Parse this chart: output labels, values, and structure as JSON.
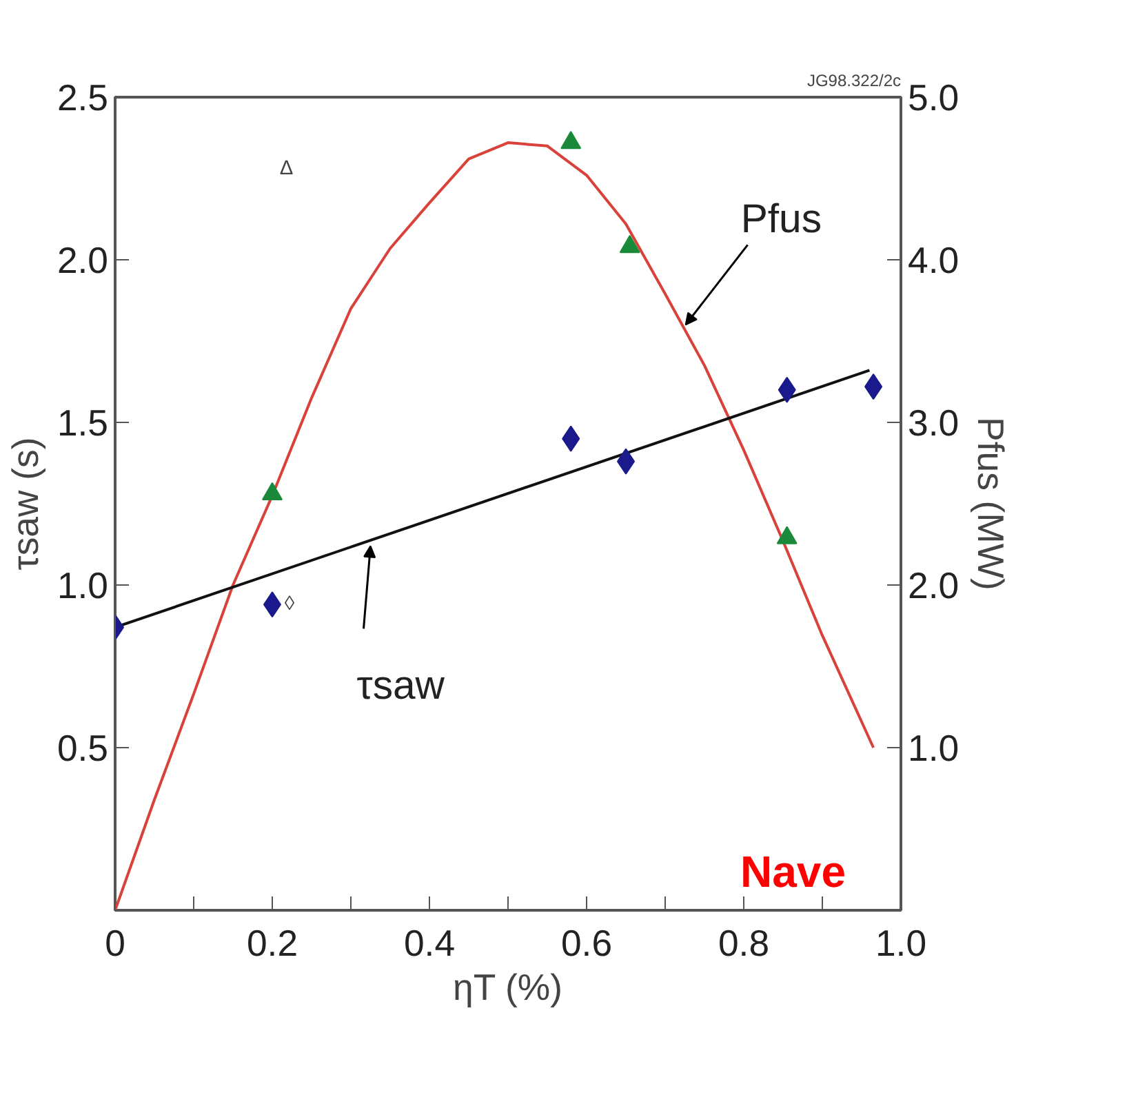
{
  "chart_data": {
    "type": "scatter",
    "xlabel": "ηT (%)",
    "ylabel": "τsaw (s)",
    "y2label": "Pfus (MW)",
    "xlim": [
      0,
      1.0
    ],
    "ylim": [
      0,
      2.5
    ],
    "y2lim": [
      0,
      5.0
    ],
    "xticks": [
      0,
      {
        "value": 0.1,
        "label": null
      },
      0.2,
      {
        "value": 0.3,
        "label": null
      },
      0.4,
      {
        "value": 0.5,
        "label": null
      },
      0.6,
      {
        "value": 0.7,
        "label": null
      },
      0.8,
      {
        "value": 0.9,
        "label": null
      },
      {
        "value": 1.0,
        "label": "1.0"
      }
    ],
    "yticks": [
      0.5,
      {
        "value": 1.0,
        "label": "1.0"
      },
      1.5,
      {
        "value": 2.0,
        "label": "2.0"
      },
      2.5
    ],
    "y2ticks": [
      {
        "value": 1.0,
        "label": "1.0"
      },
      {
        "value": 2.0,
        "label": "2.0"
      },
      {
        "value": 3.0,
        "label": "3.0"
      },
      {
        "value": 4.0,
        "label": "4.0"
      },
      {
        "value": 5.0,
        "label": "5.0"
      }
    ],
    "grid": false,
    "series": [
      {
        "type": "line",
        "color": "#d9423a",
        "axis": "y2",
        "x": [
          0,
          0.05,
          0.1,
          0.15,
          0.2,
          0.25,
          0.3,
          0.35,
          0.4,
          0.45,
          0.5,
          0.55,
          0.6,
          0.65,
          0.7,
          0.75,
          0.8,
          0.85,
          0.9,
          0.965
        ],
        "values": [
          0,
          0.68,
          1.33,
          2.0,
          2.55,
          3.15,
          3.7,
          4.07,
          4.35,
          4.62,
          4.72,
          4.7,
          4.52,
          4.22,
          3.79,
          3.35,
          2.83,
          2.27,
          1.69,
          1.0
        ]
      },
      {
        "type": "line",
        "color": "#111111",
        "axis": "y",
        "x": [
          0,
          0.96
        ],
        "values": [
          0.87,
          1.66
        ]
      },
      {
        "color": "#1a1a8c",
        "axis": "y",
        "marker": "diamond",
        "x": [
          0,
          0.2,
          0.58,
          0.65,
          0.855,
          0.965
        ],
        "values": [
          0.87,
          0.94,
          1.45,
          1.38,
          1.6,
          1.61
        ]
      },
      {
        "color": "#1a8a3a",
        "axis": "y2",
        "marker": "triangle",
        "x": [
          0.2,
          0.58,
          0.655,
          0.855
        ],
        "values": [
          2.56,
          4.72,
          4.08,
          2.29
        ]
      }
    ],
    "annotations": [
      {
        "text": "Pfus",
        "x": 0.726,
        "y": 1.8
      },
      {
        "text": "τsaw",
        "x": 0.325,
        "y": 1.12
      },
      "Δ",
      "◊",
      "JG98.322/2c",
      "Nave"
    ]
  }
}
